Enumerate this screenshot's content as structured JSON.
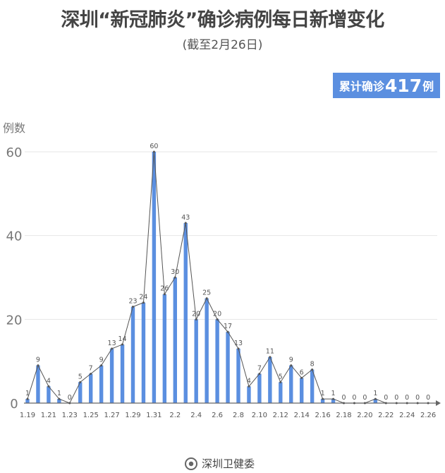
{
  "chart_data": {
    "type": "bar",
    "title": "深圳“新冠肺炎”确诊病例每日新增变化",
    "subtitle": "(截至2月26日)",
    "ylabel": "例数",
    "ylim": [
      0,
      60
    ],
    "yticks": [
      0,
      20,
      40,
      60
    ],
    "grid": true,
    "overlay_line": true,
    "bar_color": "#5b8fe0",
    "categories": [
      "1.19",
      "1.20",
      "1.21",
      "1.22",
      "1.23",
      "1.24",
      "1.25",
      "1.26",
      "1.27",
      "1.28",
      "1.29",
      "1.30",
      "1.31",
      "2.1",
      "2.2",
      "2.3",
      "2.4",
      "2.5",
      "2.6",
      "2.7",
      "2.8",
      "2.9",
      "2.10",
      "2.11",
      "2.12",
      "2.13",
      "2.14",
      "2.15",
      "2.16",
      "2.17",
      "2.18",
      "2.19",
      "2.20",
      "2.21",
      "2.22",
      "2.23",
      "2.24",
      "2.25",
      "2.26"
    ],
    "xtick_labels": [
      "1.19",
      "1.21",
      "1.23",
      "1.25",
      "1.27",
      "1.29",
      "1.31",
      "2.2",
      "2.4",
      "2.6",
      "2.8",
      "2.10",
      "2.12",
      "2.14",
      "2.16",
      "2.18",
      "2.20",
      "2.22",
      "2.24",
      "2.26"
    ],
    "values": [
      1,
      9,
      4,
      1,
      0,
      5,
      7,
      9,
      13,
      14,
      23,
      24,
      60,
      26,
      30,
      43,
      20,
      25,
      20,
      17,
      13,
      4,
      7,
      11,
      5,
      9,
      6,
      8,
      1,
      1,
      0,
      0,
      0,
      1,
      0,
      0,
      0,
      0,
      0
    ]
  },
  "total_badge": {
    "prefix": "累计确诊",
    "number": "417",
    "suffix": "例"
  },
  "footer": {
    "source": "深圳卫健委"
  }
}
